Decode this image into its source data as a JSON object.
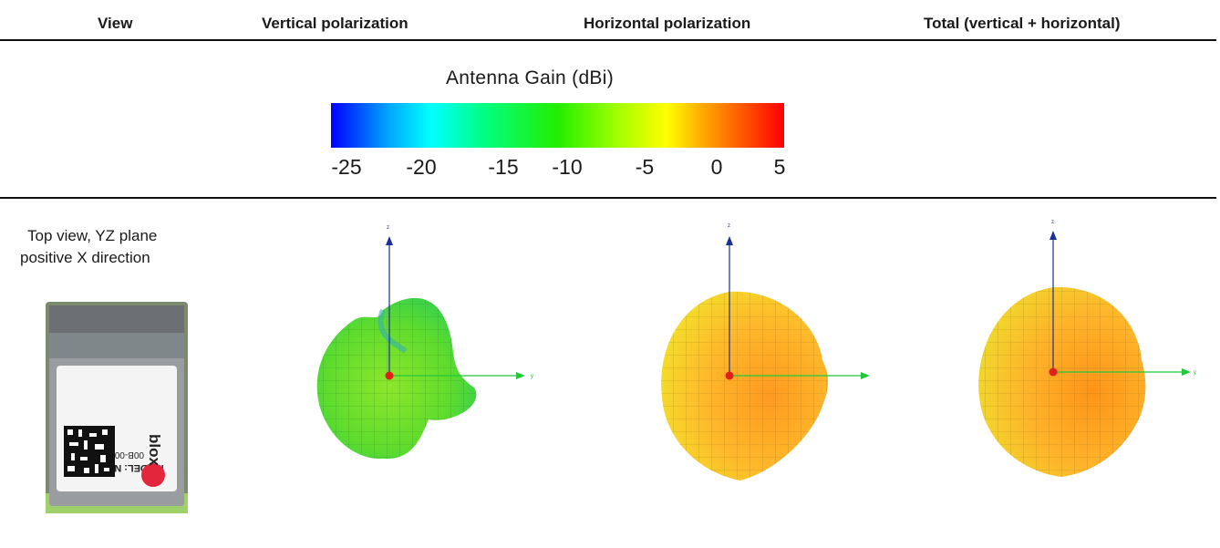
{
  "table": {
    "headers": [
      "View",
      "Vertical polarization",
      "Horizontal polarization",
      "Total (vertical + horizontal)"
    ],
    "row": {
      "view_description": [
        "Top view, YZ plane",
        "positive X direction"
      ]
    }
  },
  "legend": {
    "title": "Antenna Gain (dBi)",
    "ticks": [
      "-25",
      "-20",
      "-15",
      "-10",
      "-5",
      "0",
      "5"
    ],
    "colors": [
      "#0000ff",
      "#00aaff",
      "#00ffff",
      "#00ff88",
      "#22ee00",
      "#aaff00",
      "#ffff00",
      "#ffaa00",
      "#ff5500",
      "#ff0000"
    ]
  },
  "module_label": {
    "model": "MODEL: NINA-B312",
    "code": "00B-00 17/32",
    "brand": "blox"
  },
  "plots": [
    {
      "name": "vertical",
      "axis_z": "z",
      "axis_y": "y",
      "dominant_color": "#66dd22"
    },
    {
      "name": "horizontal",
      "axis_z": "z",
      "axis_y": "y",
      "dominant_color": "#ffb020"
    },
    {
      "name": "total",
      "axis_z": "z",
      "axis_y": "y",
      "dominant_color": "#ffa81a"
    }
  ]
}
